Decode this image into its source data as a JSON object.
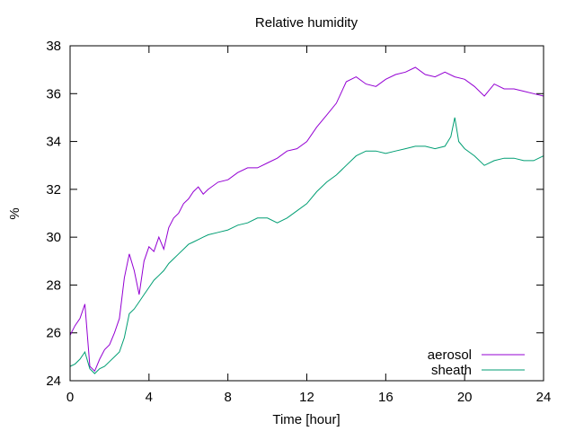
{
  "chart_data": {
    "type": "line",
    "title": "Relative humidity",
    "xlabel": "Time [hour]",
    "ylabel": "%",
    "xlim": [
      0,
      24
    ],
    "ylim": [
      24,
      38
    ],
    "xticks": [
      0,
      4,
      8,
      12,
      16,
      20,
      24
    ],
    "yticks": [
      24,
      26,
      28,
      30,
      32,
      34,
      36,
      38
    ],
    "grid": false,
    "legend_position": "bottom-right",
    "series": [
      {
        "name": "aerosol",
        "color": "#9400d3",
        "x": [
          0,
          0.25,
          0.5,
          0.75,
          1,
          1.25,
          1.5,
          1.75,
          2,
          2.25,
          2.5,
          2.75,
          3,
          3.25,
          3.5,
          3.75,
          4,
          4.25,
          4.5,
          4.75,
          5,
          5.25,
          5.5,
          5.75,
          6,
          6.25,
          6.5,
          6.75,
          7,
          7.5,
          8,
          8.5,
          9,
          9.5,
          10,
          10.5,
          11,
          11.5,
          12,
          12.5,
          13,
          13.5,
          14,
          14.5,
          15,
          15.5,
          16,
          16.5,
          17,
          17.5,
          18,
          18.5,
          19,
          19.5,
          20,
          20.5,
          21,
          21.5,
          22,
          22.5,
          23,
          23.5,
          24
        ],
        "y": [
          25.9,
          26.3,
          26.6,
          27.2,
          24.6,
          24.4,
          24.9,
          25.3,
          25.5,
          26.0,
          26.6,
          28.3,
          29.3,
          28.6,
          27.6,
          29.0,
          29.6,
          29.4,
          30.0,
          29.5,
          30.4,
          30.8,
          31.0,
          31.4,
          31.6,
          31.9,
          32.1,
          31.8,
          32.0,
          32.3,
          32.4,
          32.7,
          32.9,
          32.9,
          33.1,
          33.3,
          33.6,
          33.7,
          34.0,
          34.6,
          35.1,
          35.6,
          36.5,
          36.7,
          36.4,
          36.3,
          36.6,
          36.8,
          36.9,
          37.1,
          36.8,
          36.7,
          36.9,
          36.7,
          36.6,
          36.3,
          35.9,
          36.4,
          36.2,
          36.2,
          36.1,
          36.0,
          35.9
        ]
      },
      {
        "name": "sheath",
        "color": "#009e73",
        "x": [
          0,
          0.25,
          0.5,
          0.75,
          1,
          1.25,
          1.5,
          1.75,
          2,
          2.25,
          2.5,
          2.75,
          3,
          3.25,
          3.5,
          3.75,
          4,
          4.25,
          4.5,
          4.75,
          5,
          5.25,
          5.5,
          5.75,
          6,
          6.25,
          6.5,
          6.75,
          7,
          7.5,
          8,
          8.5,
          9,
          9.5,
          10,
          10.5,
          11,
          11.5,
          12,
          12.5,
          13,
          13.5,
          14,
          14.5,
          15,
          15.5,
          16,
          16.5,
          17,
          17.5,
          18,
          18.5,
          19,
          19.3,
          19.5,
          19.7,
          20,
          20.5,
          21,
          21.5,
          22,
          22.5,
          23,
          23.5,
          24
        ],
        "y": [
          24.6,
          24.7,
          24.9,
          25.2,
          24.5,
          24.3,
          24.5,
          24.6,
          24.8,
          25.0,
          25.2,
          25.8,
          26.8,
          27.0,
          27.3,
          27.6,
          27.9,
          28.2,
          28.4,
          28.6,
          28.9,
          29.1,
          29.3,
          29.5,
          29.7,
          29.8,
          29.9,
          30.0,
          30.1,
          30.2,
          30.3,
          30.5,
          30.6,
          30.8,
          30.8,
          30.6,
          30.8,
          31.1,
          31.4,
          31.9,
          32.3,
          32.6,
          33.0,
          33.4,
          33.6,
          33.6,
          33.5,
          33.6,
          33.7,
          33.8,
          33.8,
          33.7,
          33.8,
          34.2,
          35.0,
          34.0,
          33.7,
          33.4,
          33.0,
          33.2,
          33.3,
          33.3,
          33.2,
          33.2,
          33.4
        ]
      }
    ]
  }
}
